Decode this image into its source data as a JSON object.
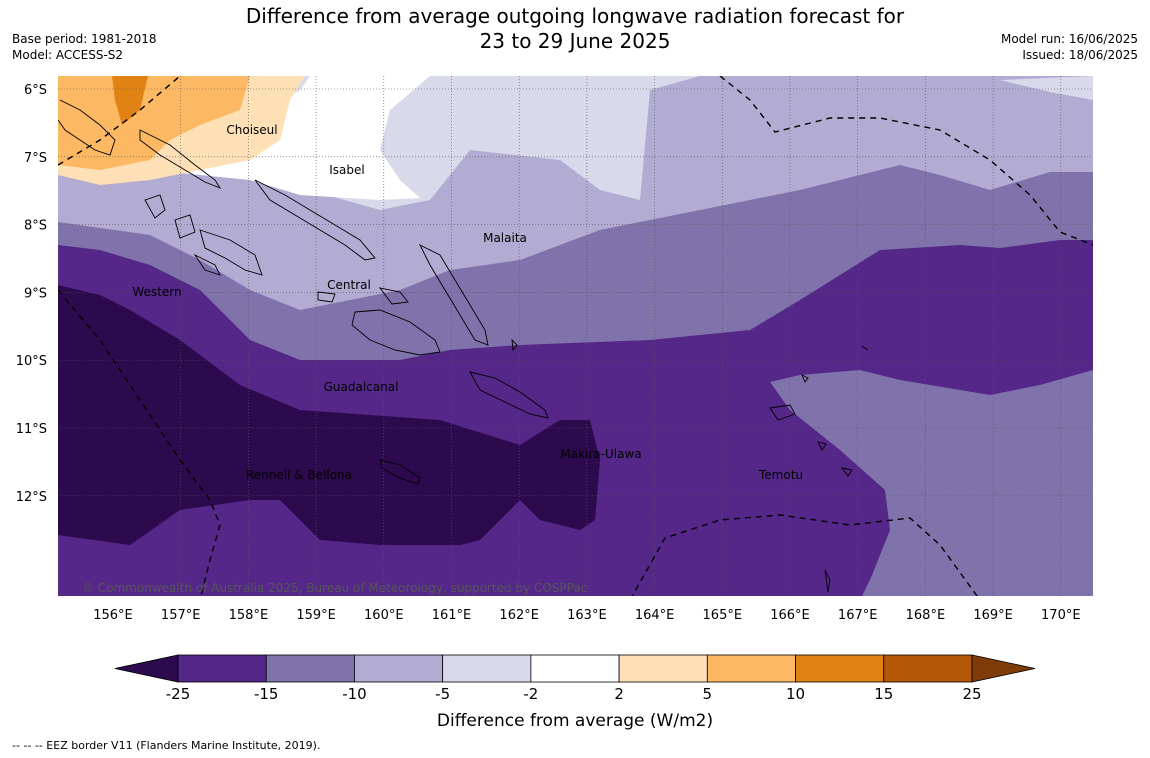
{
  "header": {
    "title_line1": "Difference from average outgoing longwave radiation forecast for",
    "title_line2": "23 to 29 June 2025",
    "base_period": "Base period: 1981-2018",
    "model": "Model: ACCESS-S2",
    "model_run": "Model run: 16/06/2025",
    "issued": "Issued: 18/06/2025"
  },
  "map": {
    "lat_labels": [
      "6°S",
      "7°S",
      "8°S",
      "9°S",
      "10°S",
      "11°S",
      "12°S"
    ],
    "lon_labels": [
      "156°E",
      "157°E",
      "158°E",
      "159°E",
      "160°E",
      "161°E",
      "162°E",
      "163°E",
      "164°E",
      "165°E",
      "166°E",
      "167°E",
      "168°E",
      "169°E",
      "170°E"
    ],
    "regions": [
      "Choiseul",
      "Isabel",
      "Malaita",
      "Western",
      "Central",
      "Guadalcanal",
      "Makira-Ulawa",
      "Rennell & Bellona",
      "Temotu"
    ],
    "copyright": "© Commonwealth of Australia 2025, Bureau of Meteorology, supported by COSPPac"
  },
  "legend": {
    "ticks": [
      "-25",
      "-15",
      "-10",
      "-5",
      "-2",
      "2",
      "5",
      "10",
      "15",
      "25"
    ],
    "colors": [
      "#2d0a4e",
      "#542788",
      "#8073ac",
      "#b2abd2",
      "#d8daeb",
      "#ffffff",
      "#fee0b6",
      "#fdb863",
      "#e08214",
      "#b35806",
      "#7f3b08"
    ],
    "label": "Difference from average (W/m2)"
  },
  "footer": {
    "eez_note": "--  --  -- EEZ border V11 (Flanders Marine Institute, 2019)."
  }
}
